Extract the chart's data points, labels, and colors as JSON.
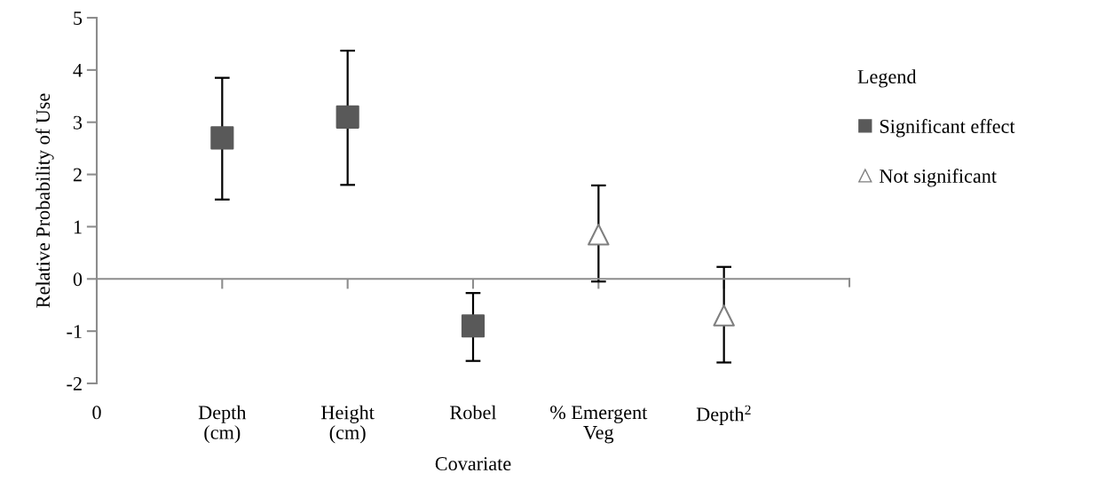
{
  "chart_data": {
    "type": "scatter",
    "ylabel": "Relative Probability of Use",
    "xlabel": "Covariate",
    "legend_title": "Legend",
    "categories": [
      "0",
      "Depth\n(cm)",
      "Height\n(cm)",
      "Robel",
      "% Emergent\nVeg",
      "Depth$^{2}$"
    ],
    "series": [
      {
        "name": "Significant effect",
        "color": "#595959",
        "marker": "square",
        "values": [
          null,
          2.7,
          3.1,
          -0.9,
          null,
          null
        ],
        "errors": [
          null,
          [
            1.52,
            3.85
          ],
          [
            1.8,
            4.37
          ],
          [
            -1.57,
            -0.27
          ],
          null,
          null
        ]
      },
      {
        "name": "Not significant",
        "color": "#7f7f7f",
        "marker": "triangle",
        "values": [
          null,
          null,
          null,
          null,
          0.85,
          -0.7
        ],
        "errors": [
          null,
          null,
          null,
          null,
          [
            -0.05,
            1.79
          ],
          [
            -1.6,
            0.23
          ]
        ]
      }
    ],
    "ylim": [
      -2,
      5
    ],
    "yticks": [
      -2,
      -1,
      0,
      1,
      2,
      3,
      4,
      5
    ],
    "legend": "right"
  }
}
